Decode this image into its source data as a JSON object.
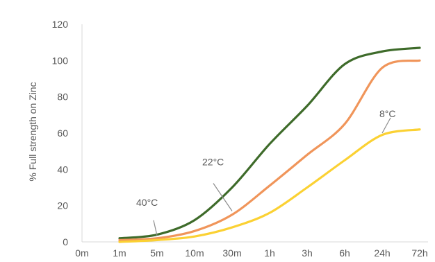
{
  "chart_data": {
    "type": "line",
    "title": "",
    "xlabel": "",
    "ylabel": "% Full strength on Zinc",
    "categories": [
      "0m",
      "1m",
      "5m",
      "10m",
      "30m",
      "1h",
      "3h",
      "6h",
      "24h",
      "72h"
    ],
    "ylim": [
      0,
      120
    ],
    "yticks": [
      0,
      20,
      40,
      60,
      80,
      100,
      120
    ],
    "grid": false,
    "legend": "none",
    "series": [
      {
        "name": "40°C",
        "color": "#3e6b2a",
        "values": [
          null,
          2,
          4,
          12,
          30,
          54,
          75,
          98,
          105,
          107
        ]
      },
      {
        "name": "22°C",
        "color": "#f0955a",
        "values": [
          null,
          1,
          2,
          6,
          15,
          31,
          48,
          65,
          96,
          100
        ]
      },
      {
        "name": "8°C",
        "color": "#fbd133",
        "values": [
          null,
          0,
          1,
          3,
          8,
          16,
          30,
          45,
          59,
          62
        ]
      }
    ]
  }
}
